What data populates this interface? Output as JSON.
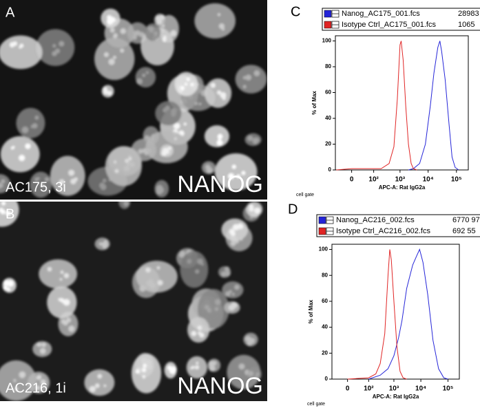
{
  "panels": [
    {
      "letter": "A",
      "caption": "AC175, 3i",
      "stain": "NANOG"
    },
    {
      "letter": "B",
      "caption": "AC216, 1i",
      "stain": "NANOG"
    }
  ],
  "chart_data": [
    {
      "type": "line",
      "letter": "C",
      "xlabel": "APC-A: Rat IgG2a",
      "ylabel": "% of Max",
      "footnote": "cell gate",
      "xscale": "biexponential",
      "xlim": [
        -55,
        262144
      ],
      "ylim": [
        0,
        104
      ],
      "xticks": [
        0,
        {
          "value": 100,
          "label": "10²"
        },
        {
          "value": 1000,
          "label": "10³"
        },
        {
          "value": 10000,
          "label": "10⁴"
        },
        {
          "value": 100000,
          "label": "10⁵"
        }
      ],
      "yticks": [
        0,
        20,
        40,
        60,
        80,
        100
      ],
      "series": [
        {
          "name": "Nanog_AC175_001.fcs",
          "stats": "28983",
          "color": "#2424d8",
          "x": [
            2000,
            3000,
            5000,
            8000,
            12000,
            16000,
            22000,
            26000,
            30000,
            40000,
            55000,
            70000,
            90000,
            120000
          ],
          "values": [
            0,
            1,
            5,
            20,
            50,
            75,
            95,
            100,
            92,
            70,
            35,
            10,
            2,
            0
          ]
        },
        {
          "name": "Isotype Ctrl_AC175_001.fcs",
          "stats": "1065",
          "color": "#e02424",
          "x": [
            -50,
            0,
            100,
            200,
            400,
            600,
            800,
            1000,
            1100,
            1300,
            1600,
            2000,
            2500,
            3000,
            4000
          ],
          "values": [
            0,
            1,
            1,
            1,
            5,
            18,
            55,
            97,
            100,
            85,
            50,
            20,
            5,
            1,
            0
          ]
        }
      ]
    },
    {
      "type": "line",
      "letter": "D",
      "xlabel": "APC-A: Rat IgG2a",
      "ylabel": "% of Max",
      "footnote": "cell gate",
      "xscale": "biexponential",
      "xlim": [
        -55,
        262144
      ],
      "ylim": [
        0,
        104
      ],
      "xticks": [
        0,
        {
          "value": 100,
          "label": "10²"
        },
        {
          "value": 1000,
          "label": "10³"
        },
        {
          "value": 10000,
          "label": "10⁴"
        },
        {
          "value": 100000,
          "label": "10⁵"
        }
      ],
      "yticks": [
        0,
        20,
        40,
        60,
        80,
        100
      ],
      "series": [
        {
          "name": "Nanog_AC216_002.fcs",
          "stats": "6770 97",
          "color": "#2424d8",
          "x": [
            100,
            300,
            600,
            1000,
            1500,
            2000,
            3000,
            5000,
            7000,
            9000,
            12000,
            18000,
            28000,
            45000,
            70000,
            100000
          ],
          "values": [
            0,
            3,
            8,
            18,
            32,
            45,
            70,
            88,
            95,
            100,
            90,
            65,
            30,
            8,
            1,
            0
          ]
        },
        {
          "name": "Isotype Ctrl_AC216_002.fcs",
          "stats": "692 55",
          "color": "#e02424",
          "x": [
            0,
            100,
            200,
            300,
            450,
            600,
            700,
            800,
            1000,
            1300,
            1700,
            2200,
            3000
          ],
          "values": [
            0,
            1,
            4,
            12,
            35,
            80,
            100,
            92,
            60,
            25,
            6,
            1,
            0
          ]
        }
      ]
    }
  ]
}
